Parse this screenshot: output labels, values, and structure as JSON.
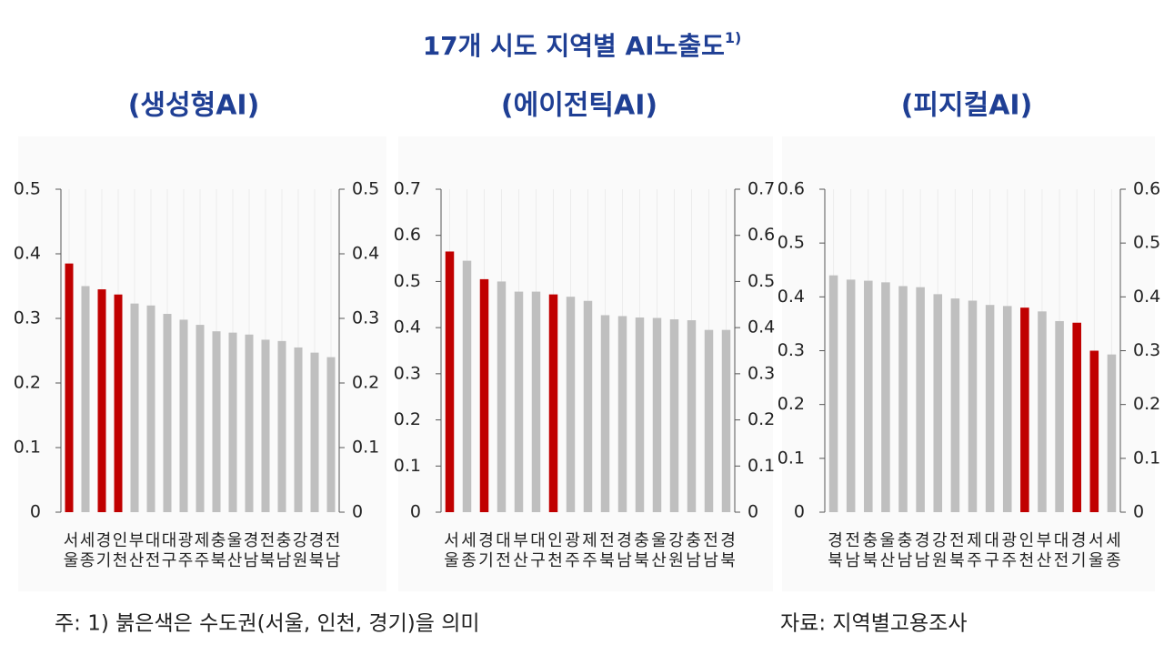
{
  "title": "17개 시도 지역별 AI노출도",
  "title_note": "1)",
  "footnote": "주: 1) 붉은색은 수도권(서울, 인천, 경기)을 의미",
  "source": "자료: 지역별고용조사",
  "chart_data": [
    {
      "type": "bar",
      "title": "(생성형AI)",
      "categories": [
        "서울",
        "세종",
        "경기",
        "인천",
        "부산",
        "대전",
        "대구",
        "광주",
        "제주",
        "충북",
        "울산",
        "경남",
        "전북",
        "충남",
        "강원",
        "경북",
        "전남"
      ],
      "values": [
        0.385,
        0.35,
        0.345,
        0.337,
        0.323,
        0.32,
        0.307,
        0.298,
        0.29,
        0.28,
        0.278,
        0.275,
        0.267,
        0.265,
        0.255,
        0.247,
        0.24
      ],
      "colors": [
        "#c00000",
        "#bfbfbf",
        "#c00000",
        "#c00000",
        "#bfbfbf",
        "#bfbfbf",
        "#bfbfbf",
        "#bfbfbf",
        "#bfbfbf",
        "#bfbfbf",
        "#bfbfbf",
        "#bfbfbf",
        "#bfbfbf",
        "#bfbfbf",
        "#bfbfbf",
        "#bfbfbf",
        "#bfbfbf"
      ],
      "ylim": [
        0,
        0.5
      ],
      "yticks": [
        0,
        0.1,
        0.2,
        0.3,
        0.4,
        0.5
      ],
      "grid": true
    },
    {
      "type": "bar",
      "title": "(에이전틱AI)",
      "categories": [
        "서울",
        "세종",
        "경기",
        "대전",
        "부산",
        "대구",
        "인천",
        "광주",
        "제주",
        "전북",
        "경남",
        "충북",
        "울산",
        "강원",
        "충남",
        "전남",
        "경북"
      ],
      "values": [
        0.565,
        0.545,
        0.505,
        0.5,
        0.478,
        0.478,
        0.472,
        0.467,
        0.458,
        0.427,
        0.425,
        0.422,
        0.421,
        0.418,
        0.416,
        0.395,
        0.395
      ],
      "colors": [
        "#c00000",
        "#bfbfbf",
        "#c00000",
        "#bfbfbf",
        "#bfbfbf",
        "#bfbfbf",
        "#c00000",
        "#bfbfbf",
        "#bfbfbf",
        "#bfbfbf",
        "#bfbfbf",
        "#bfbfbf",
        "#bfbfbf",
        "#bfbfbf",
        "#bfbfbf",
        "#bfbfbf",
        "#bfbfbf"
      ],
      "ylim": [
        0,
        0.7
      ],
      "yticks": [
        0,
        0.1,
        0.2,
        0.3,
        0.4,
        0.5,
        0.6,
        0.7
      ],
      "grid": true
    },
    {
      "type": "bar",
      "title": "(피지컬AI)",
      "categories": [
        "경북",
        "전남",
        "충북",
        "울산",
        "충남",
        "경남",
        "강원",
        "전북",
        "제주",
        "대구",
        "광주",
        "인천",
        "부산",
        "대전",
        "경기",
        "서울",
        "세종"
      ],
      "values": [
        0.44,
        0.432,
        0.43,
        0.427,
        0.42,
        0.418,
        0.405,
        0.397,
        0.393,
        0.385,
        0.383,
        0.38,
        0.373,
        0.355,
        0.352,
        0.3,
        0.293
      ],
      "colors": [
        "#bfbfbf",
        "#bfbfbf",
        "#bfbfbf",
        "#bfbfbf",
        "#bfbfbf",
        "#bfbfbf",
        "#bfbfbf",
        "#bfbfbf",
        "#bfbfbf",
        "#bfbfbf",
        "#bfbfbf",
        "#c00000",
        "#bfbfbf",
        "#bfbfbf",
        "#c00000",
        "#c00000",
        "#bfbfbf"
      ],
      "ylim": [
        0,
        0.6
      ],
      "yticks": [
        0,
        0.1,
        0.2,
        0.3,
        0.4,
        0.5,
        0.6
      ],
      "grid": true
    }
  ]
}
